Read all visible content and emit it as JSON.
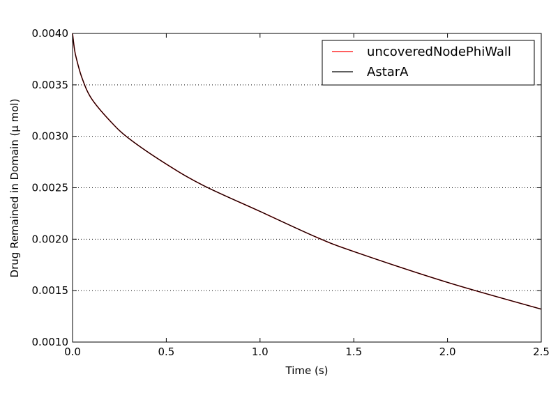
{
  "chart_data": {
    "type": "line",
    "xlabel": "Time (s)",
    "ylabel": "Drug Remained in Domain (μ mol)",
    "xlim": [
      0,
      2.5
    ],
    "ylim": [
      0.001,
      0.004
    ],
    "xticks": [
      0.0,
      0.5,
      1.0,
      1.5,
      2.0,
      2.5
    ],
    "xtick_labels": [
      "0.0",
      "0.5",
      "1.0",
      "1.5",
      "2.0",
      "2.5"
    ],
    "yticks": [
      0.001,
      0.0015,
      0.002,
      0.0025,
      0.003,
      0.0035,
      0.004
    ],
    "ytick_labels": [
      "0.0010",
      "0.0015",
      "0.0020",
      "0.0025",
      "0.0030",
      "0.0035",
      "0.0040"
    ],
    "grid": "y-dotted",
    "legend_position": "top-right",
    "series": [
      {
        "name": "uncoveredNodePhiWall",
        "color": "#ff0000",
        "x": [
          0.0,
          0.01,
          0.02,
          0.05,
          0.1,
          0.2,
          0.3,
          0.5,
          0.7,
          1.0,
          1.3,
          1.5,
          2.0,
          2.5
        ],
        "y": [
          0.004,
          0.00385,
          0.00376,
          0.00357,
          0.00337,
          0.00315,
          0.00298,
          0.00273,
          0.00252,
          0.00227,
          0.00202,
          0.00188,
          0.00158,
          0.00132
        ]
      },
      {
        "name": "AstarA",
        "color": "#000000",
        "x": [
          0.0,
          0.01,
          0.02,
          0.05,
          0.1,
          0.2,
          0.3,
          0.5,
          0.7,
          1.0,
          1.3,
          1.5,
          2.0,
          2.5
        ],
        "y": [
          0.004,
          0.00385,
          0.00376,
          0.00357,
          0.00337,
          0.00315,
          0.00298,
          0.00273,
          0.00252,
          0.00227,
          0.00202,
          0.00188,
          0.00158,
          0.00132
        ]
      }
    ]
  }
}
